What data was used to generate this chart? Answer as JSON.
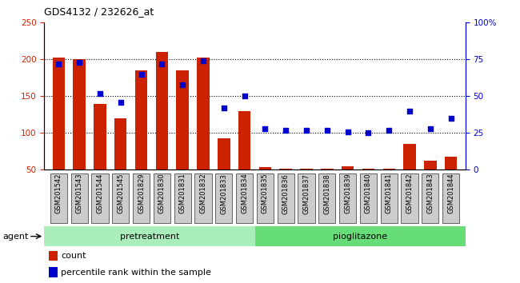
{
  "title": "GDS4132 / 232626_at",
  "samples": [
    "GSM201542",
    "GSM201543",
    "GSM201544",
    "GSM201545",
    "GSM201829",
    "GSM201830",
    "GSM201831",
    "GSM201832",
    "GSM201833",
    "GSM201834",
    "GSM201835",
    "GSM201836",
    "GSM201837",
    "GSM201838",
    "GSM201839",
    "GSM201840",
    "GSM201841",
    "GSM201842",
    "GSM201843",
    "GSM201844"
  ],
  "bar_values": [
    202,
    200,
    140,
    120,
    185,
    210,
    185,
    202,
    93,
    130,
    54,
    52,
    52,
    52,
    55,
    52,
    52,
    85,
    62,
    68
  ],
  "percentile_values": [
    72,
    73,
    52,
    46,
    65,
    72,
    58,
    74,
    42,
    50,
    28,
    27,
    27,
    27,
    26,
    25,
    27,
    40,
    28,
    35
  ],
  "bar_color": "#cc2200",
  "dot_color": "#0000cc",
  "pretreatment_color": "#aaeebb",
  "pioglitazone_color": "#66dd77",
  "ylim_left": [
    50,
    250
  ],
  "ylim_right": [
    0,
    100
  ],
  "yticks_left": [
    50,
    100,
    150,
    200,
    250
  ],
  "yticks_right": [
    0,
    25,
    50,
    75,
    100
  ],
  "ytick_labels_right": [
    "0",
    "25",
    "50",
    "75",
    "100%"
  ],
  "grid_values": [
    100,
    150,
    200
  ],
  "legend_count_label": "count",
  "legend_pct_label": "percentile rank within the sample",
  "agent_label": "agent",
  "pretreatment_label": "pretreatment",
  "pioglitazone_label": "pioglitazone",
  "tick_bg_color": "#cccccc",
  "bar_bottom": 50,
  "n_pretreatment": 10,
  "n_pioglitazone": 10
}
